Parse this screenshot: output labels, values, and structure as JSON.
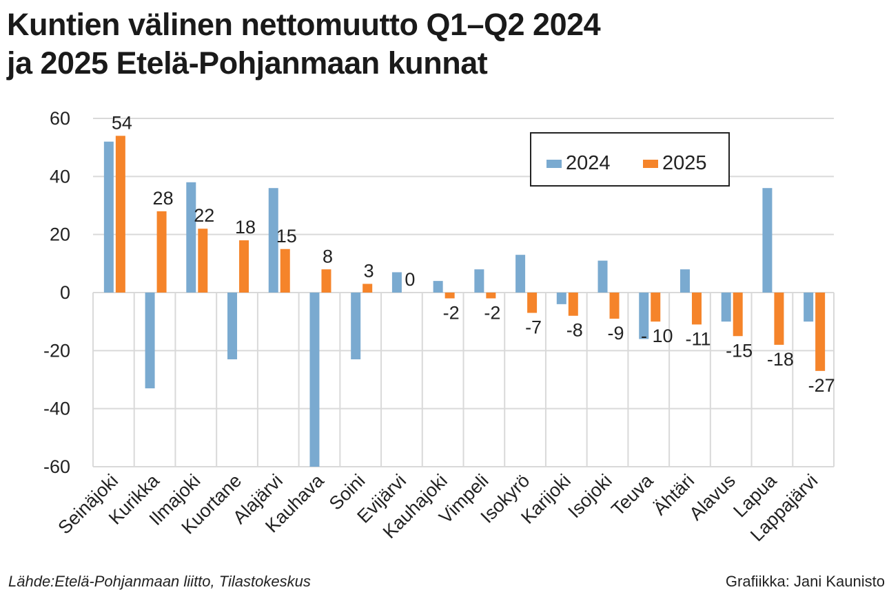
{
  "chart_data": {
    "type": "bar",
    "title": "Kuntien välinen nettomuutto Q1–Q2 2024 ja 2025 Etelä-Pohjanmaan kunnat",
    "title_lines": [
      "Kuntien välinen nettomuutto Q1–Q2 2024",
      "ja 2025 Etelä-Pohjanmaan kunnat"
    ],
    "categories": [
      "Seinäjoki",
      "Kurikka",
      "Ilmajoki",
      "Kuortane",
      "Alajärvi",
      "Kauhava",
      "Soini",
      "Evijärvi",
      "Kauhajoki",
      "Vimpeli",
      "Isokyrö",
      "Karijoki",
      "Isojoki",
      "Teuva",
      "Ähtäri",
      "Alavus",
      "Lapua",
      "Lappajärvi"
    ],
    "series": [
      {
        "name": "2024",
        "color": "#7aaad0",
        "values": [
          52,
          -33,
          38,
          -23,
          36,
          -60,
          -23,
          7,
          4,
          8,
          13,
          -4,
          11,
          -16,
          8,
          -10,
          36,
          -10
        ]
      },
      {
        "name": "2025",
        "color": "#f5842a",
        "values": [
          54,
          28,
          22,
          18,
          15,
          8,
          3,
          0,
          -2,
          -2,
          -7,
          -8,
          -9,
          -10,
          -11,
          -15,
          -18,
          -27
        ]
      }
    ],
    "data_labels_2025": [
      "54",
      "28",
      "22",
      "18",
      "15",
      "8",
      "3",
      "0",
      "-2",
      "-2",
      "-7",
      "-8",
      "-9",
      "- 10",
      "-11",
      "-15",
      "-18",
      "-27"
    ],
    "yticks": [
      "60",
      "40",
      "20",
      "0",
      "-20",
      "-40",
      "-60"
    ],
    "ylim": [
      -60,
      60
    ],
    "grid": true,
    "legend": "top-right",
    "source": "Lähde:Etelä-Pohjanmaan liitto, Tilastokeskus",
    "credit": "Grafiikka: Jani Kaunisto"
  }
}
